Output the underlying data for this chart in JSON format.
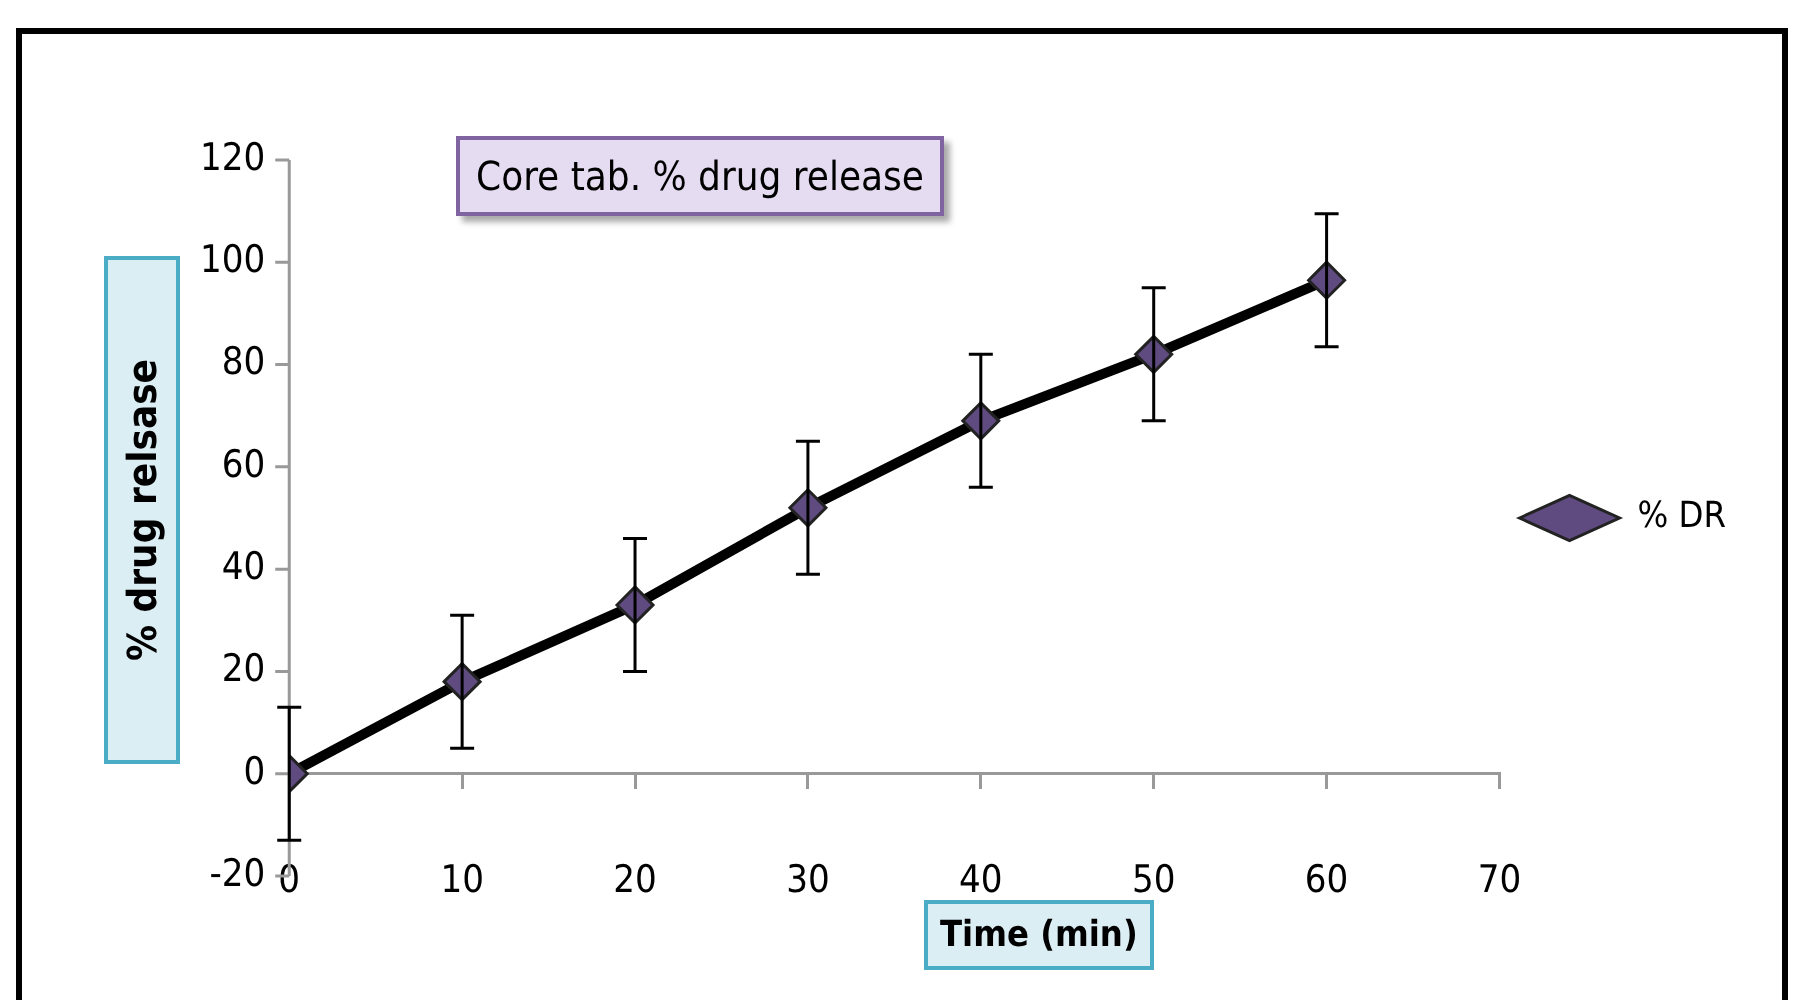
{
  "chart_data": {
    "type": "line",
    "title": "Core tab. % drug release",
    "xlabel": "Time (min)",
    "ylabel": "% drug relsase",
    "x": [
      0,
      10,
      20,
      30,
      40,
      50,
      60
    ],
    "series": [
      {
        "name": "% DR",
        "color": "#000000",
        "values": [
          0,
          18,
          33,
          52,
          69,
          82,
          96.5
        ],
        "errors": [
          13,
          13,
          13,
          13,
          13,
          13,
          13
        ]
      }
    ],
    "xlim": [
      0,
      70
    ],
    "xticks": [
      0,
      10,
      20,
      30,
      40,
      50,
      60,
      70
    ],
    "ylim": [
      -20,
      120
    ],
    "yticks": [
      -20,
      0,
      20,
      40,
      60,
      80,
      100,
      120
    ],
    "grid": false,
    "legend": "right",
    "marker": "diamond",
    "line_style": "solid"
  }
}
